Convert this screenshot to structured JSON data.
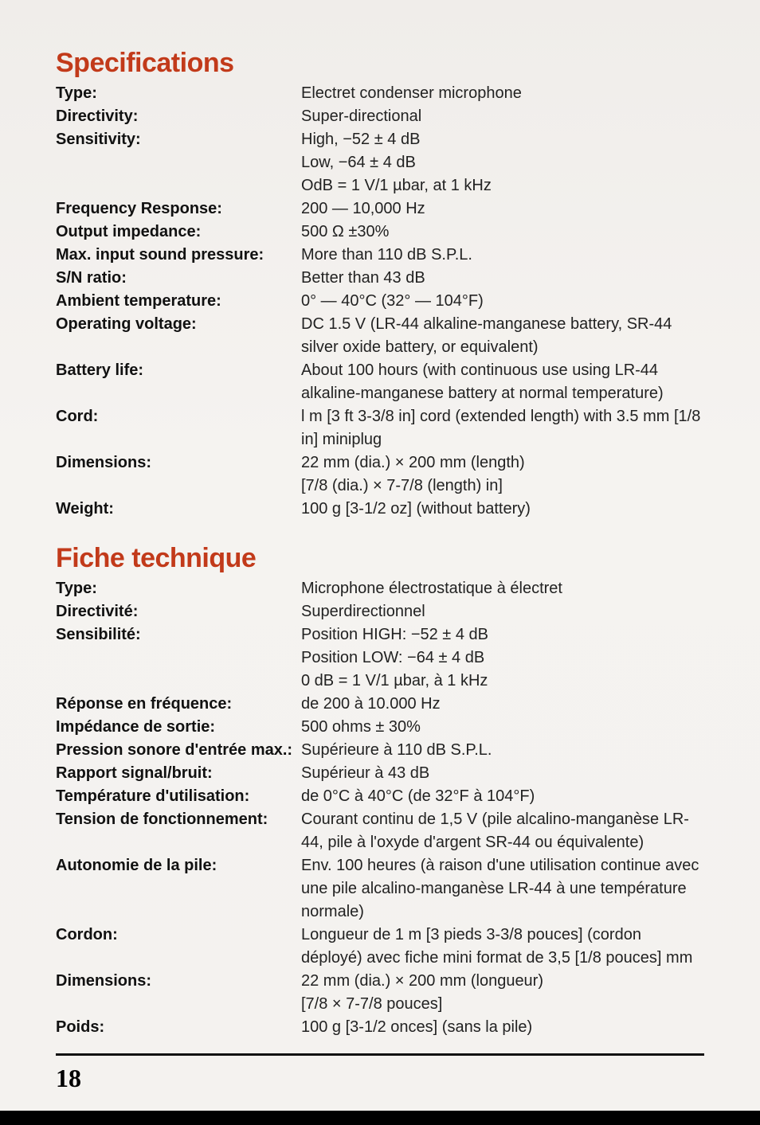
{
  "page_number": "18",
  "colors": {
    "heading": "#c23a1a",
    "text": "#1a1a1a",
    "background": "#f4f2ef",
    "rule": "#111111"
  },
  "typography": {
    "heading_fontsize_pt": 26,
    "body_fontsize_pt": 15,
    "font_family": "Arial, Helvetica, sans-serif"
  },
  "sections": [
    {
      "title": "Specifications",
      "rows": [
        {
          "label": "Type:",
          "value": "Electret condenser microphone"
        },
        {
          "label": "Directivity:",
          "value": "Super-directional"
        },
        {
          "label": "Sensitivity:",
          "value": "High, −52 ± 4 dB\nLow, −64 ± 4 dB\nOdB = 1 V/1 µbar, at 1 kHz"
        },
        {
          "label": "Frequency Response:",
          "value": "200 — 10,000 Hz"
        },
        {
          "label": "Output impedance:",
          "value": "500 Ω ±30%"
        },
        {
          "label": "Max. input sound pressure:",
          "value": "More than 110 dB S.P.L."
        },
        {
          "label": "S/N ratio:",
          "value": "Better than 43 dB"
        },
        {
          "label": "Ambient temperature:",
          "value": "0° — 40°C (32° — 104°F)"
        },
        {
          "label": "Operating voltage:",
          "value": "DC 1.5 V (LR-44 alkaline-manganese battery, SR-44 silver oxide battery, or equivalent)"
        },
        {
          "label": "Battery life:",
          "value": "About 100 hours (with continuous use using LR-44 alkaline-manganese battery at normal temperature)"
        },
        {
          "label": "Cord:",
          "value": "l m [3 ft 3-3/8 in] cord (extended length) with 3.5 mm [1/8 in] miniplug"
        },
        {
          "label": "Dimensions:",
          "value": "22 mm (dia.) × 200 mm (length)\n[7/8 (dia.) × 7-7/8 (length) in]"
        },
        {
          "label": "Weight:",
          "value": "100 g [3-1/2 oz] (without battery)"
        }
      ]
    },
    {
      "title": "Fiche technique",
      "rows": [
        {
          "label": "Type:",
          "value": "Microphone électrostatique à électret"
        },
        {
          "label": "Directivité:",
          "value": "Superdirectionnel"
        },
        {
          "label": "Sensibilité:",
          "value": "Position HIGH: −52 ± 4 dB\nPosition LOW: −64 ± 4 dB\n0 dB = 1 V/1 µbar, à 1 kHz"
        },
        {
          "label": "Réponse en fréquence:",
          "value": "de 200 à 10.000 Hz"
        },
        {
          "label": "Impédance de sortie:",
          "value": "500 ohms ± 30%"
        },
        {
          "label": "Pression sonore d'entrée max.:",
          "value": "Supérieure à 110 dB S.P.L."
        },
        {
          "label": "Rapport signal/bruit:",
          "value": "Supérieur à 43 dB"
        },
        {
          "label": "Température d'utilisation:",
          "value": "de 0°C à 40°C (de 32°F à 104°F)"
        },
        {
          "label": "Tension de fonctionnement:",
          "value": "Courant continu de 1,5 V (pile alcalino-manganèse LR-44, pile à l'oxyde d'argent SR-44 ou équivalente)"
        },
        {
          "label": "Autonomie de la pile:",
          "value": "Env. 100 heures (à raison d'une utilisation continue avec une pile alcalino-manganèse LR-44 à une température normale)"
        },
        {
          "label": "Cordon:",
          "value": "Longueur de 1 m [3 pieds 3-3/8 pouces] (cordon déployé) avec fiche mini format de 3,5 [1/8 pouces] mm"
        },
        {
          "label": "Dimensions:",
          "value": "22 mm (dia.) × 200 mm (longueur)\n[7/8 × 7-7/8 pouces]"
        },
        {
          "label": "Poids:",
          "value": "100 g [3-1/2 onces] (sans la pile)"
        }
      ]
    }
  ]
}
